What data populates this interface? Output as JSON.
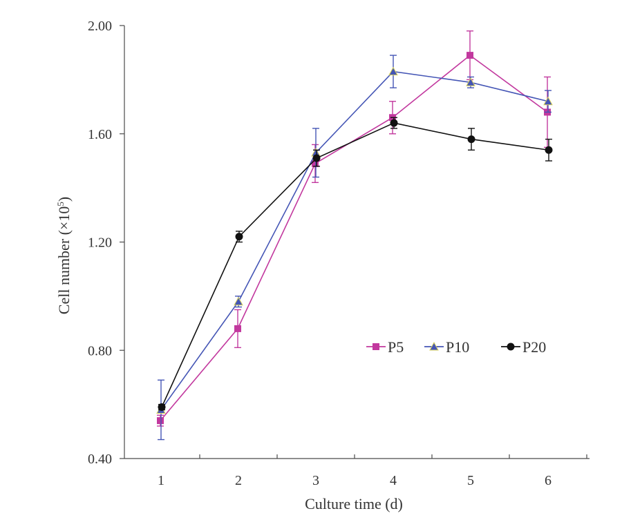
{
  "chart_data": {
    "type": "line",
    "title": "",
    "xlabel": "Culture time (d)",
    "ylabel_main": "Cell number (×10",
    "ylabel_sup": "5",
    "ylabel_end": ")",
    "x": [
      1,
      2,
      3,
      4,
      5,
      6
    ],
    "x_tick_labels": [
      "1",
      "2",
      "3",
      "4",
      "5",
      "6"
    ],
    "ylim": [
      0.4,
      2.0
    ],
    "y_ticks": [
      0.4,
      0.8,
      1.2,
      1.6,
      2.0
    ],
    "y_tick_labels": [
      "0.40",
      "0.80",
      "1.20",
      "1.60",
      "2.00"
    ],
    "grid": false,
    "legend_position": "lower-right",
    "series": [
      {
        "name": "P5",
        "color": "#c2389e",
        "marker": "square",
        "values": [
          0.54,
          0.88,
          1.49,
          1.66,
          1.89,
          1.68
        ],
        "errors": [
          0.02,
          0.07,
          0.07,
          0.06,
          0.09,
          0.13
        ]
      },
      {
        "name": "P10",
        "color": "#4455b5",
        "marker": "triangle",
        "values": [
          0.58,
          0.98,
          1.53,
          1.83,
          1.79,
          1.72
        ],
        "errors": [
          0.11,
          0.02,
          0.09,
          0.06,
          0.02,
          0.04
        ]
      },
      {
        "name": "P20",
        "color": "#111111",
        "marker": "diamond",
        "values": [
          0.59,
          1.22,
          1.51,
          1.64,
          1.58,
          1.54
        ],
        "errors": [
          0.01,
          0.02,
          0.03,
          0.02,
          0.04,
          0.04
        ]
      }
    ]
  }
}
